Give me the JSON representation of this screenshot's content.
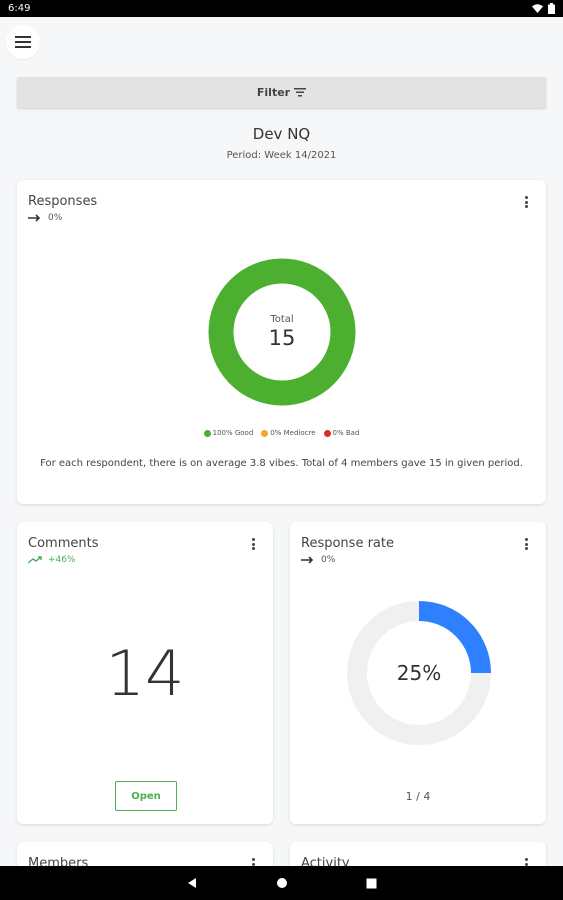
{
  "status_bar": {
    "time": "6:49"
  },
  "header": {
    "filter_label": "Filter"
  },
  "page": {
    "title": "Dev NQ",
    "period": "Period: Week 14/2021"
  },
  "responses_card": {
    "title": "Responses",
    "trend": "0%",
    "total_label": "Total",
    "total_value": "15",
    "legend": [
      {
        "label": "100% Good",
        "color": "#4caf2f"
      },
      {
        "label": "0% Mediocre",
        "color": "#f5a623"
      },
      {
        "label": "0% Bad",
        "color": "#d93025"
      }
    ],
    "description": "For each respondent, there is on average 3.8 vibes. Total of 4 members gave 15 in given period."
  },
  "comments_card": {
    "title": "Comments",
    "trend": "+46%",
    "value": "14",
    "open_label": "Open"
  },
  "response_rate_card": {
    "title": "Response rate",
    "trend": "0%",
    "percent_label": "25%",
    "ratio": "1 / 4",
    "fraction": 0.25,
    "color": "#2f80ff"
  },
  "members_card": {
    "title": "Members"
  },
  "activity_card": {
    "title": "Activity"
  }
}
